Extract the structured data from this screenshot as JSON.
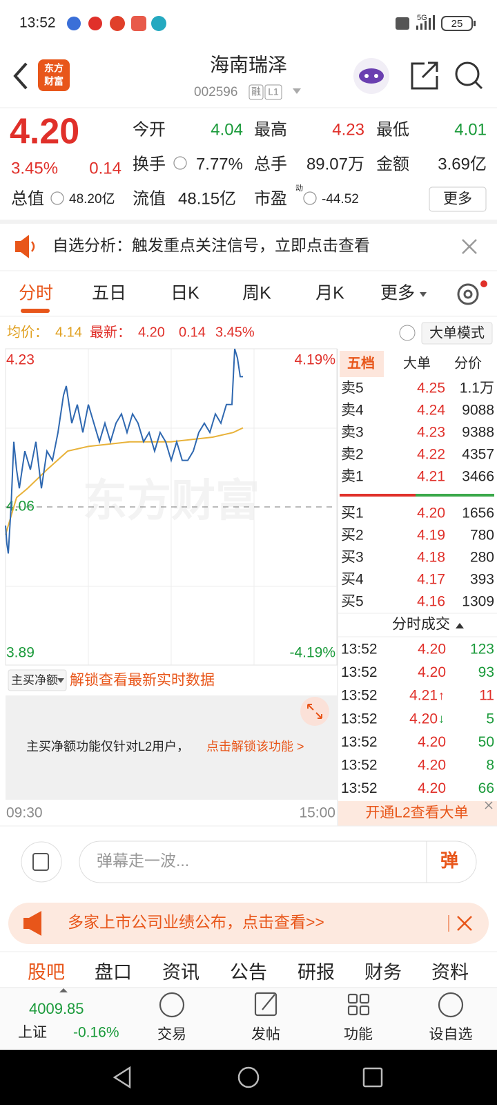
{
  "status_bar": {
    "time": "13:52",
    "network": "5G",
    "battery": "25"
  },
  "header": {
    "logo": [
      "东方",
      "财富"
    ],
    "name": "海南瑞泽",
    "code": "002596",
    "badges": [
      "融",
      "L1"
    ]
  },
  "quote": {
    "price": "4.20",
    "change_pct": "3.45%",
    "change": "0.14",
    "open_label": "今开",
    "open": "4.04",
    "high_label": "最高",
    "high": "4.23",
    "low_label": "最低",
    "low": "4.01",
    "turnover_label": "换手",
    "turnover": "7.77%",
    "volume_label": "总手",
    "volume": "89.07万",
    "amount_label": "金额",
    "amount": "3.69亿",
    "mcap_label": "总值",
    "mcap": "48.20亿",
    "float_label": "流值",
    "float": "48.15亿",
    "pe_label": "市盈",
    "pe_sup": "动",
    "pe": "-44.52",
    "more": "更多"
  },
  "notice": "自选分析：触发重点关注信号，立即点击查看",
  "tabs": [
    "分时",
    "五日",
    "日K",
    "周K",
    "月K",
    "更多"
  ],
  "chart_info": {
    "avg_label": "均价：",
    "avg": "4.14",
    "latest_label": "最新：",
    "latest": "4.20",
    "change": "0.14",
    "change_pct": "3.45%",
    "mode_button": "大单模式"
  },
  "intraday_chart": {
    "type": "line",
    "watermark": "东方财富",
    "xlim": [
      0,
      240
    ],
    "xticks": [
      {
        "value": 0,
        "label": "09:30"
      },
      {
        "value": 240,
        "label": "15:00"
      }
    ],
    "ylim": [
      3.89,
      4.23
    ],
    "yticks": [
      3.89,
      4.06,
      4.23
    ],
    "y2lim": [
      -4.19,
      4.19
    ],
    "y2ticks": [
      {
        "value": -4.19,
        "label": "-4.19%"
      },
      {
        "value": 4.19,
        "label": "4.19%"
      }
    ],
    "series": [
      {
        "color": "#2f68b0",
        "x": [
          0,
          1,
          2,
          4,
          6,
          8,
          10,
          14,
          18,
          22,
          26,
          30,
          34,
          38,
          42,
          44,
          48,
          52,
          56,
          60,
          64,
          68,
          72,
          76,
          80,
          84,
          88,
          92,
          96,
          100,
          104,
          108,
          112,
          116,
          120,
          124,
          128,
          132,
          136,
          140,
          144,
          148,
          152,
          156,
          160,
          164,
          166,
          168,
          170,
          172
        ],
        "values": [
          4.04,
          4.02,
          4.01,
          4.06,
          4.13,
          4.1,
          4.08,
          4.12,
          4.1,
          4.13,
          4.08,
          4.12,
          4.11,
          4.14,
          4.18,
          4.19,
          4.15,
          4.17,
          4.14,
          4.17,
          4.15,
          4.13,
          4.15,
          4.13,
          4.15,
          4.16,
          4.14,
          4.16,
          4.15,
          4.13,
          4.14,
          4.12,
          4.14,
          4.13,
          4.11,
          4.13,
          4.11,
          4.11,
          4.12,
          4.14,
          4.15,
          4.14,
          4.16,
          4.15,
          4.17,
          4.17,
          4.23,
          4.22,
          4.2,
          4.2
        ]
      },
      {
        "color": "#e8b23a",
        "x": [
          0,
          4,
          8,
          16,
          30,
          45,
          60,
          90,
          120,
          150,
          165,
          172
        ],
        "values": [
          4.03,
          4.05,
          4.07,
          4.08,
          4.1,
          4.12,
          4.125,
          4.13,
          4.13,
          4.135,
          4.14,
          4.145
        ]
      }
    ]
  },
  "flow": {
    "selector": "主买净额",
    "link": "解锁查看最新实时数据",
    "locked_text": "主买净额功能仅针对L2用户，",
    "locked_link": "点击解锁该功能 >"
  },
  "order_book": {
    "tabs": [
      "五档",
      "大单",
      "分价"
    ],
    "asks": [
      {
        "label": "卖5",
        "price": "4.25",
        "volume": "1.1万"
      },
      {
        "label": "卖4",
        "price": "4.24",
        "volume": "9088"
      },
      {
        "label": "卖3",
        "price": "4.23",
        "volume": "9388"
      },
      {
        "label": "卖2",
        "price": "4.22",
        "volume": "4357"
      },
      {
        "label": "卖1",
        "price": "4.21",
        "volume": "3466"
      }
    ],
    "bids": [
      {
        "label": "买1",
        "price": "4.20",
        "volume": "1656"
      },
      {
        "label": "买2",
        "price": "4.19",
        "volume": "780"
      },
      {
        "label": "买3",
        "price": "4.18",
        "volume": "280"
      },
      {
        "label": "买4",
        "price": "4.17",
        "volume": "393"
      },
      {
        "label": "买5",
        "price": "4.16",
        "volume": "1309"
      }
    ]
  },
  "trades": {
    "title": "分时成交",
    "rows": [
      {
        "time": "13:52",
        "price": "4.20",
        "volume": "123",
        "side": "sell"
      },
      {
        "time": "13:52",
        "price": "4.20",
        "volume": "93",
        "side": "sell"
      },
      {
        "time": "13:52",
        "price": "4.21",
        "arrow": "↑",
        "volume": "11",
        "side": "buy"
      },
      {
        "time": "13:52",
        "price": "4.20",
        "arrow": "↓",
        "volume": "5",
        "side": "sell"
      },
      {
        "time": "13:52",
        "price": "4.20",
        "volume": "50",
        "side": "sell"
      },
      {
        "time": "13:52",
        "price": "4.20",
        "volume": "8",
        "side": "sell"
      },
      {
        "time": "13:52",
        "price": "4.20",
        "volume": "66",
        "side": "sell"
      }
    ]
  },
  "l2_banner": "开通L2查看大单",
  "danmu": {
    "placeholder": "弹幕走一波...",
    "button": "弹"
  },
  "announcement": "多家上市公司业绩公布，点击查看>>",
  "bottom_tabs": [
    "股吧",
    "盘口",
    "资讯",
    "公告",
    "研报",
    "财务",
    "资料"
  ],
  "index": {
    "value": "4009.85",
    "name": "上证",
    "change": "-0.16%"
  },
  "nav": [
    "交易",
    "发帖",
    "功能",
    "设自选"
  ]
}
